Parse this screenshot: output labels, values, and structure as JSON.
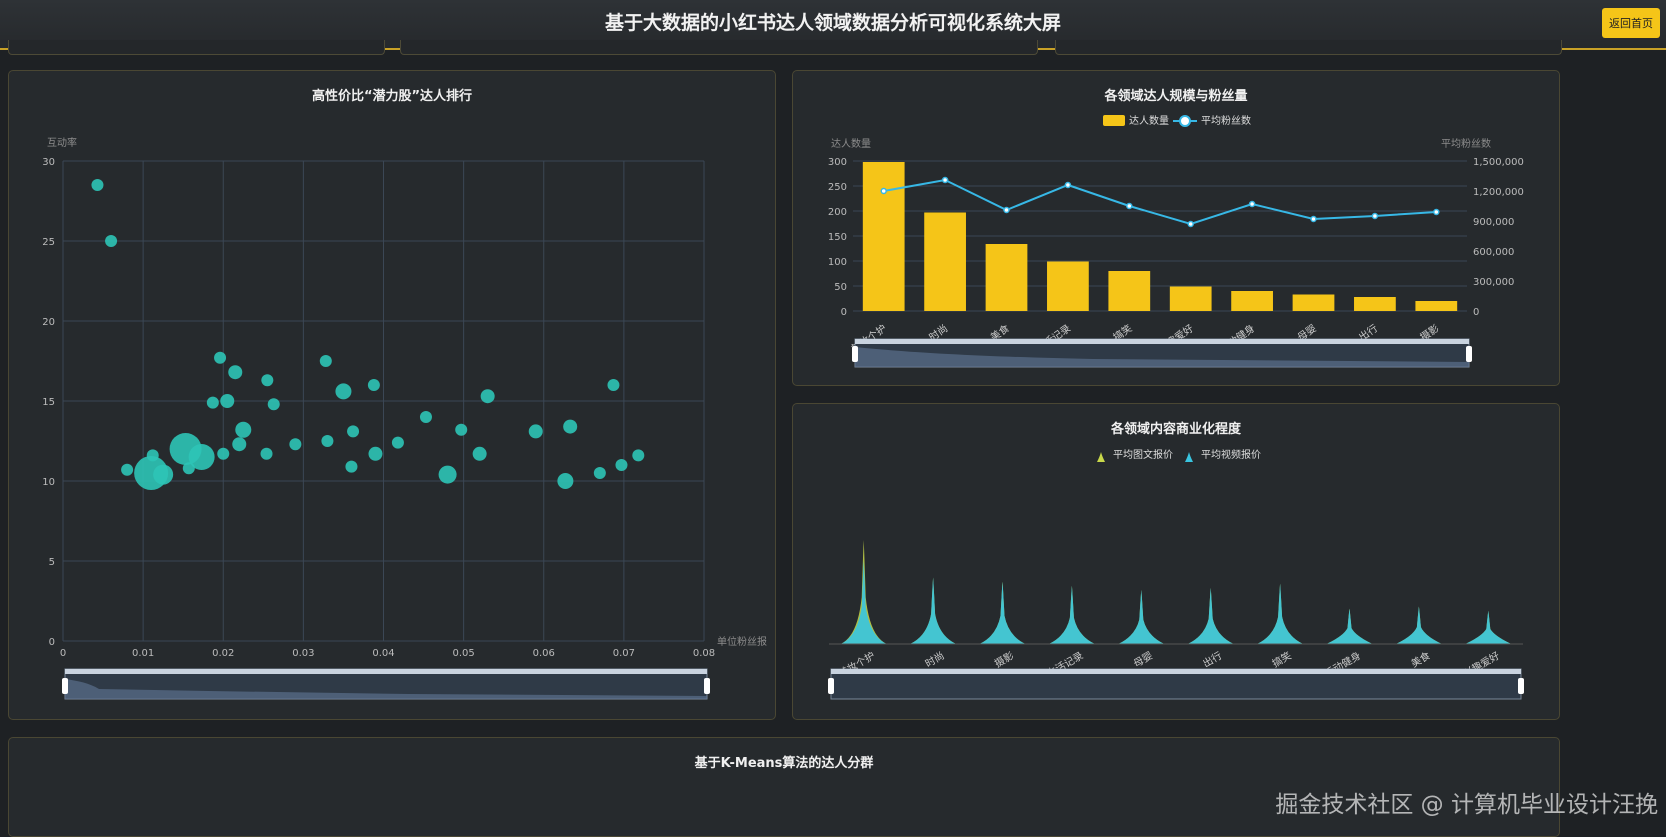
{
  "header": {
    "title": "基于大数据的小红书达人领域数据分析可视化系统大屏",
    "home_button": "返回首页"
  },
  "colors": {
    "accent": "#f5c518",
    "teal": "#2ec4b6",
    "line": "#37b8e6",
    "cone": "#39c5e0",
    "cone_yellow": "#c8d84a"
  },
  "scatter_panel": {
    "title": "高性价比“潜力股”达人排行",
    "chart_data": {
      "type": "scatter",
      "ylabel": "互动率",
      "xlabel": "单位粉丝报",
      "xlim": [
        0,
        0.08
      ],
      "ylim": [
        0,
        30
      ],
      "x_ticks": [
        "0",
        "0.01",
        "0.02",
        "0.03",
        "0.04",
        "0.05",
        "0.06",
        "0.07",
        "0.08"
      ],
      "y_ticks": [
        "0",
        "5",
        "10",
        "15",
        "20",
        "25",
        "30"
      ],
      "points": [
        {
          "x": 0.0043,
          "y": 28.5,
          "s": 6
        },
        {
          "x": 0.006,
          "y": 25.0,
          "s": 6
        },
        {
          "x": 0.008,
          "y": 10.7,
          "s": 6
        },
        {
          "x": 0.011,
          "y": 10.5,
          "s": 17
        },
        {
          "x": 0.0112,
          "y": 11.6,
          "s": 6
        },
        {
          "x": 0.0125,
          "y": 10.4,
          "s": 10
        },
        {
          "x": 0.0153,
          "y": 12.0,
          "s": 16
        },
        {
          "x": 0.0157,
          "y": 10.8,
          "s": 6
        },
        {
          "x": 0.0173,
          "y": 11.5,
          "s": 13
        },
        {
          "x": 0.0187,
          "y": 14.9,
          "s": 6
        },
        {
          "x": 0.0196,
          "y": 17.7,
          "s": 6
        },
        {
          "x": 0.02,
          "y": 11.7,
          "s": 6
        },
        {
          "x": 0.0205,
          "y": 15.0,
          "s": 7
        },
        {
          "x": 0.0215,
          "y": 16.8,
          "s": 7
        },
        {
          "x": 0.022,
          "y": 12.3,
          "s": 7
        },
        {
          "x": 0.0225,
          "y": 13.2,
          "s": 8
        },
        {
          "x": 0.0254,
          "y": 11.7,
          "s": 6
        },
        {
          "x": 0.0255,
          "y": 16.3,
          "s": 6
        },
        {
          "x": 0.0263,
          "y": 14.8,
          "s": 6
        },
        {
          "x": 0.029,
          "y": 12.3,
          "s": 6
        },
        {
          "x": 0.0328,
          "y": 17.5,
          "s": 6
        },
        {
          "x": 0.033,
          "y": 12.5,
          "s": 6
        },
        {
          "x": 0.035,
          "y": 15.6,
          "s": 8
        },
        {
          "x": 0.036,
          "y": 10.9,
          "s": 6
        },
        {
          "x": 0.0362,
          "y": 13.1,
          "s": 6
        },
        {
          "x": 0.0388,
          "y": 16.0,
          "s": 6
        },
        {
          "x": 0.039,
          "y": 11.7,
          "s": 7
        },
        {
          "x": 0.0418,
          "y": 12.4,
          "s": 6
        },
        {
          "x": 0.0453,
          "y": 14.0,
          "s": 6
        },
        {
          "x": 0.048,
          "y": 10.4,
          "s": 9
        },
        {
          "x": 0.0497,
          "y": 13.2,
          "s": 6
        },
        {
          "x": 0.052,
          "y": 11.7,
          "s": 7
        },
        {
          "x": 0.053,
          "y": 15.3,
          "s": 7
        },
        {
          "x": 0.059,
          "y": 13.1,
          "s": 7
        },
        {
          "x": 0.0627,
          "y": 10.0,
          "s": 8
        },
        {
          "x": 0.0633,
          "y": 13.4,
          "s": 7
        },
        {
          "x": 0.067,
          "y": 10.5,
          "s": 6
        },
        {
          "x": 0.0687,
          "y": 16.0,
          "s": 6
        },
        {
          "x": 0.0697,
          "y": 11.0,
          "s": 6
        },
        {
          "x": 0.0718,
          "y": 11.6,
          "s": 6
        }
      ]
    }
  },
  "bar_panel": {
    "title": "各领域达人规模与粉丝量",
    "chart_data": {
      "type": "bar",
      "categories": [
        "美妆个护",
        "时尚",
        "美食",
        "生活记录",
        "搞笑",
        "兴趣爱好",
        "运动健身",
        "母婴",
        "出行",
        "摄影"
      ],
      "series": [
        {
          "name": "达人数量",
          "type": "bar",
          "values": [
            298,
            197,
            134,
            99,
            80,
            49,
            40,
            33,
            28,
            20
          ]
        },
        {
          "name": "平均粉丝数",
          "type": "line",
          "values": [
            1200000,
            1310000,
            1010000,
            1260000,
            1050000,
            870000,
            1070000,
            920000,
            950000,
            990000
          ]
        }
      ],
      "ylabel_left": "达人数量",
      "ylabel_right": "平均粉丝数",
      "ylim_left": [
        0,
        300
      ],
      "ylim_right": [
        0,
        1500000
      ],
      "left_ticks": [
        "0",
        "50",
        "100",
        "150",
        "200",
        "250",
        "300"
      ],
      "right_ticks": [
        "0",
        "300,000",
        "600,000",
        "900,000",
        "1,200,000",
        "1,500,000"
      ]
    }
  },
  "cone_panel": {
    "title": "各领域内容商业化程度",
    "chart_data": {
      "type": "bar",
      "categories": [
        "美妆个护",
        "时尚",
        "摄影",
        "生活记录",
        "母婴",
        "出行",
        "搞笑",
        "运动健身",
        "美食",
        "兴趣爱好"
      ],
      "series": [
        {
          "name": "平均图文报价",
          "values": [
            1000,
            640,
            600,
            560,
            520,
            540,
            580,
            340,
            360,
            320
          ]
        },
        {
          "name": "平均视频报价",
          "values": [
            800,
            640,
            600,
            560,
            520,
            540,
            580,
            340,
            360,
            320
          ]
        }
      ]
    }
  },
  "kmeans_panel": {
    "title": "基于K-Means算法的达人分群"
  },
  "watermark": "掘金技术社区 @ 计算机毕业设计汪挽"
}
